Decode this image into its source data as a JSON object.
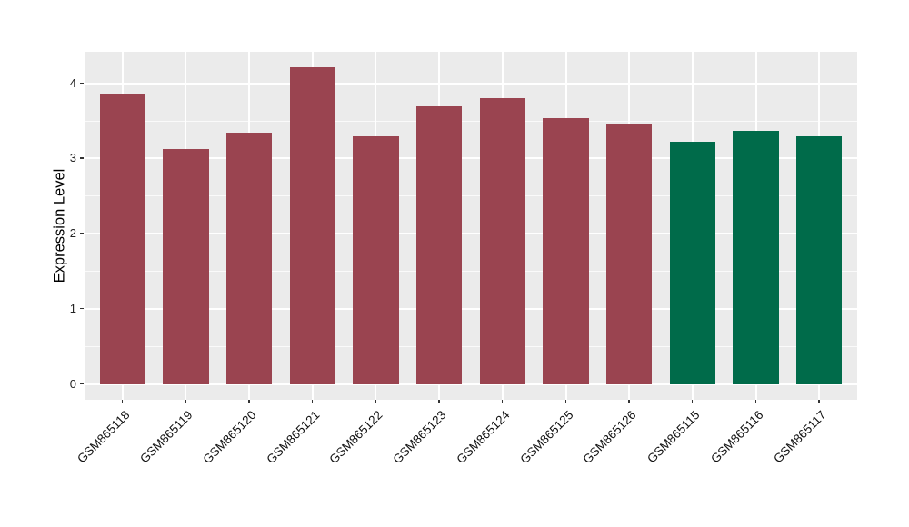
{
  "chart_data": {
    "type": "bar",
    "title": "",
    "xlabel": "",
    "ylabel": "Expression Level",
    "categories": [
      "GSM865118",
      "GSM865119",
      "GSM865120",
      "GSM865121",
      "GSM865122",
      "GSM865123",
      "GSM865124",
      "GSM865125",
      "GSM865126",
      "GSM865115",
      "GSM865116",
      "GSM865117"
    ],
    "values": [
      3.86,
      3.13,
      3.35,
      4.21,
      3.3,
      3.7,
      3.8,
      3.54,
      3.45,
      3.22,
      3.37,
      3.3
    ],
    "bar_colors": [
      "#9A4450",
      "#9A4450",
      "#9A4450",
      "#9A4450",
      "#9A4450",
      "#9A4450",
      "#9A4450",
      "#9A4450",
      "#9A4450",
      "#006B4A",
      "#006B4A",
      "#006B4A"
    ],
    "group_colors": {
      "maroon": "#9A4450",
      "green": "#006B4A"
    },
    "yticks": [
      0,
      1,
      2,
      3,
      4
    ],
    "minor_yticks": [
      0.5,
      1.5,
      2.5,
      3.5
    ],
    "ylim": [
      -0.21,
      4.42
    ],
    "grid": true,
    "legend": "none",
    "panel_background": "#EBEBEB",
    "grid_color": "#FFFFFF",
    "x_tick_rotation": 45
  }
}
